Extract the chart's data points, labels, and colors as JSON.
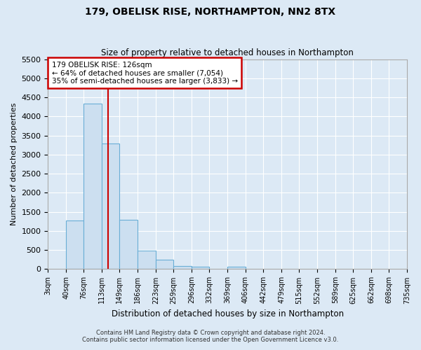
{
  "title": "179, OBELISK RISE, NORTHAMPTON, NN2 8TX",
  "subtitle": "Size of property relative to detached houses in Northampton",
  "xlabel": "Distribution of detached houses by size in Northampton",
  "ylabel": "Number of detached properties",
  "bin_labels": [
    "3sqm",
    "40sqm",
    "76sqm",
    "113sqm",
    "149sqm",
    "186sqm",
    "223sqm",
    "259sqm",
    "296sqm",
    "332sqm",
    "369sqm",
    "406sqm",
    "442sqm",
    "479sqm",
    "515sqm",
    "552sqm",
    "589sqm",
    "625sqm",
    "662sqm",
    "698sqm",
    "735sqm"
  ],
  "bar_values": [
    0,
    1270,
    4330,
    3300,
    1300,
    480,
    240,
    90,
    60,
    0,
    60,
    0,
    0,
    0,
    0,
    0,
    0,
    0,
    0,
    0
  ],
  "bar_color": "#ccdff0",
  "bar_edge_color": "#6aaed6",
  "ylim": [
    0,
    5500
  ],
  "yticks": [
    0,
    500,
    1000,
    1500,
    2000,
    2500,
    3000,
    3500,
    4000,
    4500,
    5000,
    5500
  ],
  "property_line_x": 126,
  "property_line_color": "#cc0000",
  "annotation_title": "179 OBELISK RISE: 126sqm",
  "annotation_line1": "← 64% of detached houses are smaller (7,054)",
  "annotation_line2": "35% of semi-detached houses are larger (3,833) →",
  "annotation_box_color": "#cc0000",
  "footnote1": "Contains HM Land Registry data © Crown copyright and database right 2024.",
  "footnote2": "Contains public sector information licensed under the Open Government Licence v3.0.",
  "bg_color": "#dce9f5",
  "plot_bg_color": "#dce9f5",
  "grid_color": "#ffffff",
  "bin_edges": [
    3,
    40,
    76,
    113,
    149,
    186,
    223,
    259,
    296,
    332,
    369,
    406,
    442,
    479,
    515,
    552,
    589,
    625,
    662,
    698,
    735
  ]
}
